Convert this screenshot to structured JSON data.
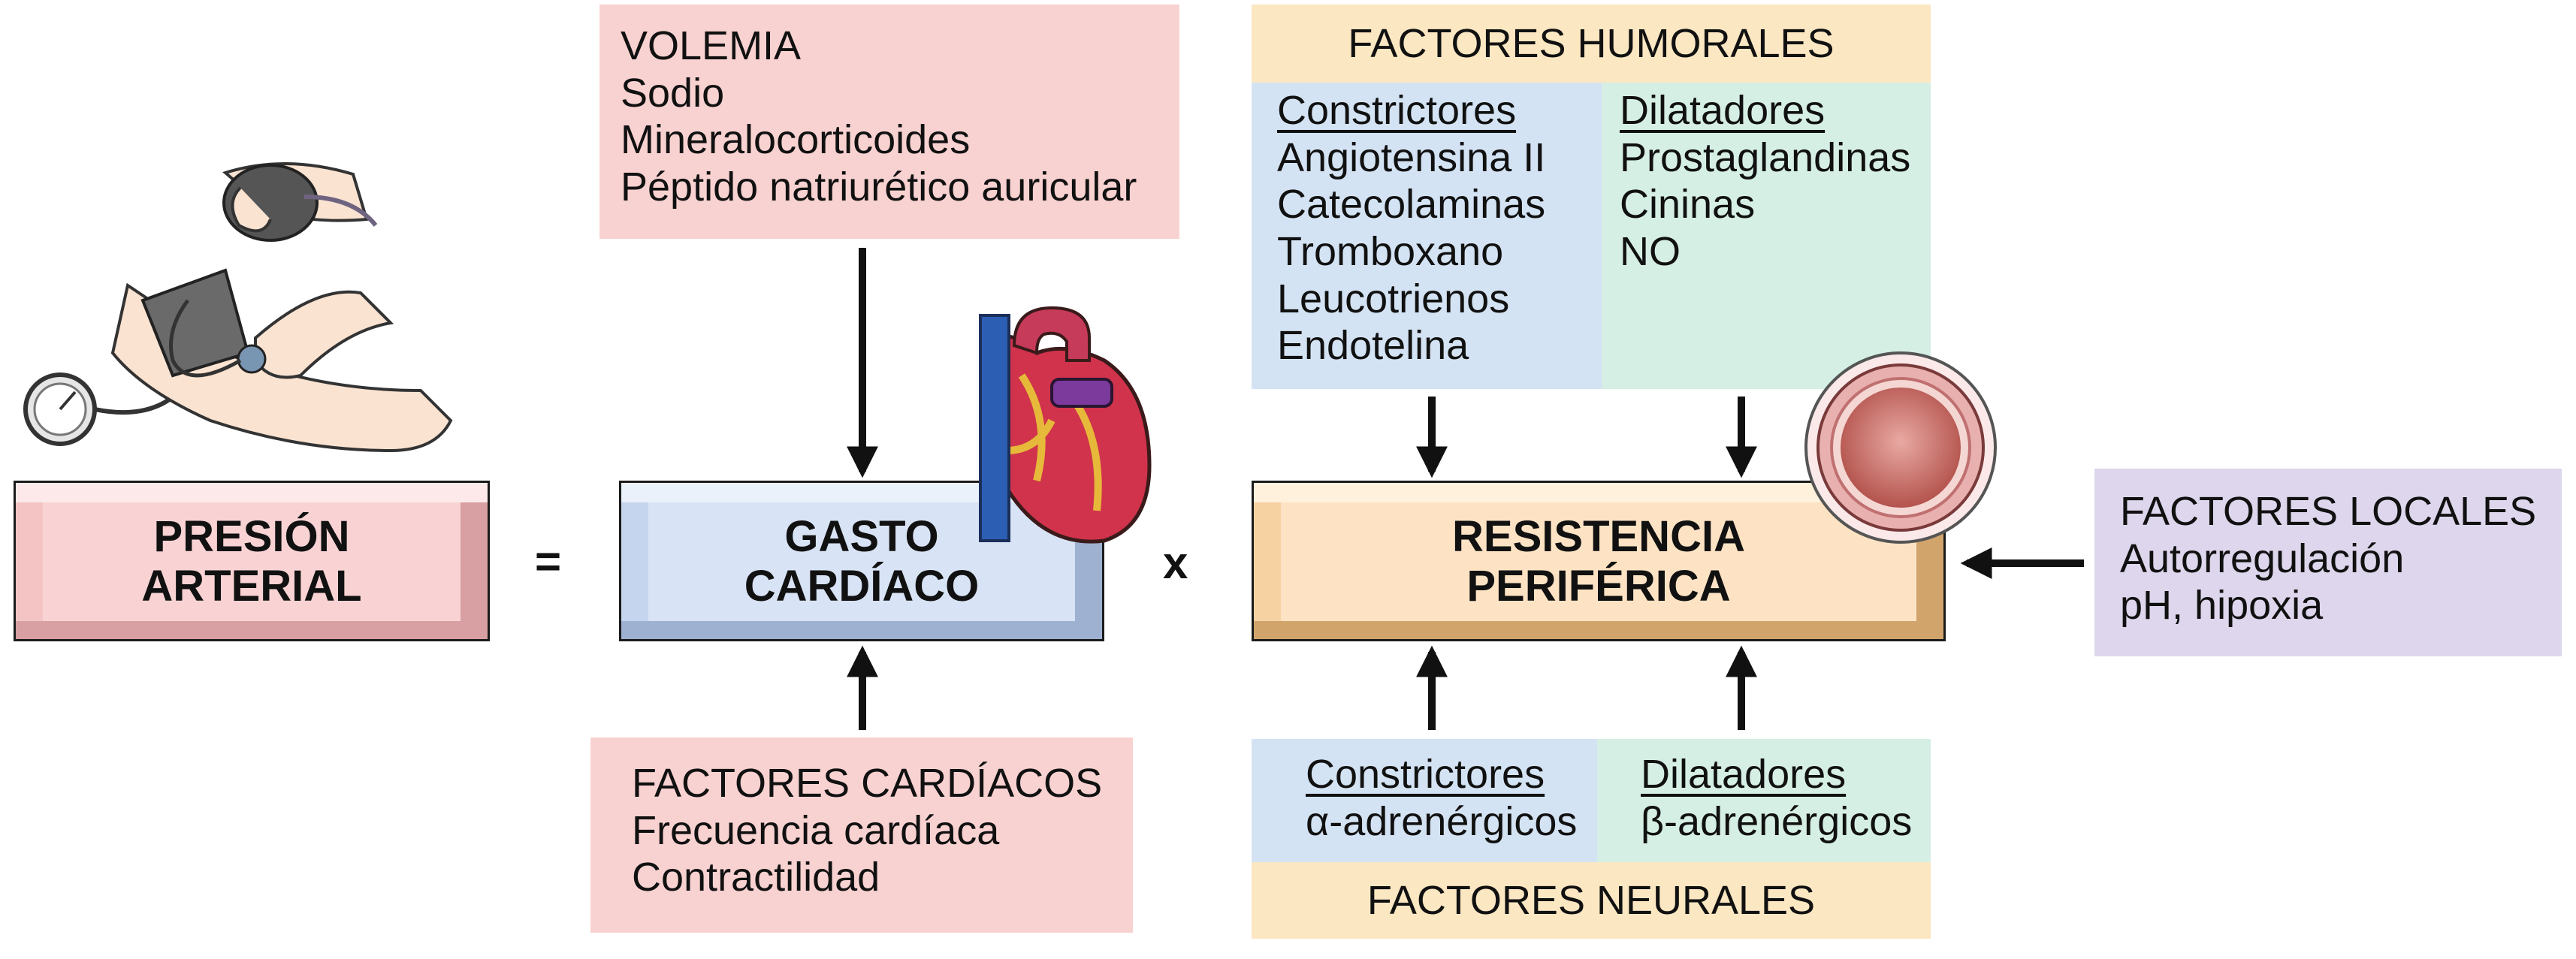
{
  "volemia": {
    "lines": [
      "VOLEMIA",
      "Sodio",
      "Mineralocorticoides",
      "Péptido natriurético auricular"
    ]
  },
  "cardiac_factors": {
    "lines": [
      "FACTORES CARDÍACOS",
      "Frecuencia cardíaca",
      "Contractilidad"
    ]
  },
  "humoral": {
    "title": "FACTORES HUMORALES",
    "constrictors": {
      "header": "Constrictores",
      "items": [
        "Angiotensina II",
        "Catecolaminas",
        "Tromboxano",
        "Leucotrienos",
        "Endotelina"
      ]
    },
    "dilators": {
      "header": "Dilatadores",
      "items": [
        "Prostaglandinas",
        "Cininas",
        "NO"
      ]
    }
  },
  "neural": {
    "title": "FACTORES NEURALES",
    "constrictors": {
      "header": "Constrictores",
      "item": "α-adrenérgicos"
    },
    "dilators": {
      "header": "Dilatadores",
      "item": "β-adrenérgicos"
    }
  },
  "local": {
    "lines": [
      "FACTORES LOCALES",
      "Autorregulación",
      "pH, hipoxia"
    ]
  },
  "equation": {
    "blood_pressure": [
      "PRESIÓN",
      "ARTERIAL"
    ],
    "equals": "=",
    "cardiac_output": [
      "GASTO",
      "CARDÍACO"
    ],
    "times": "x",
    "peripheral_resistance": [
      "RESISTENCIA",
      "PERIFÉRICA"
    ]
  },
  "colors": {
    "pink": "#f8d2d1",
    "blue": "#d4e3f3",
    "green": "#d6efe5",
    "yellow": "#fbe7c2",
    "lavender": "#ddd6ec"
  },
  "icons": [
    "blood-pressure-measurement-icon",
    "heart-icon",
    "blood-vessel-cross-section-icon"
  ]
}
